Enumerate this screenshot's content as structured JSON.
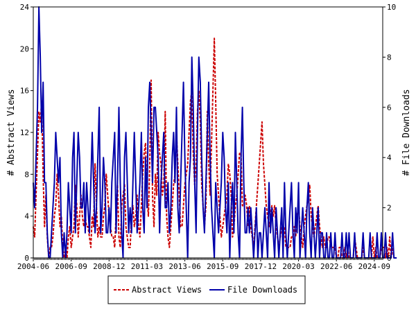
{
  "chart_data": {
    "type": "line",
    "y_left": {
      "label": "# Abstract Views",
      "ticks": [
        0,
        4,
        8,
        12,
        16,
        20,
        24
      ],
      "lim": [
        0,
        24
      ]
    },
    "y_right": {
      "label": "# File Downloads",
      "ticks": [
        0,
        2,
        4,
        6,
        8,
        10
      ],
      "lim": [
        0,
        10
      ]
    },
    "x": {
      "tick_labels": [
        "2004-06",
        "2006-09",
        "2008-12",
        "2011-03",
        "2013-06",
        "2015-09",
        "2017-12",
        "2020-03",
        "2022-06",
        "2024-09"
      ],
      "tick_months": [
        0,
        27,
        54,
        81,
        108,
        135,
        162,
        189,
        216,
        243
      ],
      "lim": [
        0,
        249
      ]
    },
    "grid": false,
    "legend_position": "bottom",
    "series": [
      {
        "name": "Abstract Views",
        "axis": "left",
        "color": "#cc0000",
        "dash": true,
        "values": [
          3,
          2,
          6,
          10,
          14,
          13,
          15,
          8,
          3,
          6,
          2,
          0,
          1,
          1,
          2,
          4,
          5,
          8,
          6,
          3,
          4,
          1,
          0,
          1,
          0,
          2,
          3,
          1,
          2,
          3,
          7,
          5,
          2,
          4,
          6,
          4,
          3,
          4,
          3,
          3,
          2,
          1,
          4,
          3,
          9,
          5,
          2,
          3,
          2,
          2,
          4,
          5,
          8,
          6,
          4,
          3,
          2,
          2,
          1,
          4,
          7,
          2,
          1,
          5,
          6,
          7,
          3,
          2,
          1,
          1,
          4,
          5,
          3,
          4,
          6,
          3,
          2,
          5,
          8,
          10,
          11,
          6,
          4,
          9,
          17,
          6,
          3,
          8,
          6,
          12,
          10,
          9,
          6,
          7,
          14,
          4,
          2,
          1,
          3,
          5,
          7,
          8,
          12,
          9,
          6,
          3,
          3,
          5,
          7,
          8,
          9,
          12,
          15,
          16,
          10,
          7,
          9,
          14,
          16,
          13,
          7,
          5,
          3,
          5,
          14,
          9,
          6,
          11,
          16,
          21,
          15,
          8,
          6,
          4,
          2,
          3,
          4,
          5,
          6,
          9,
          8,
          6,
          2,
          3,
          5,
          6,
          8,
          10,
          10,
          5,
          5,
          6,
          5,
          3,
          5,
          3,
          2,
          1,
          3,
          5,
          7,
          9,
          11,
          13,
          9,
          7,
          5,
          4,
          3,
          4,
          5,
          4,
          5,
          3,
          2,
          1,
          2,
          3,
          2,
          3,
          1,
          1,
          1,
          1,
          2,
          2,
          3,
          2,
          4,
          5,
          3,
          2,
          1,
          3,
          4,
          5,
          6,
          7,
          4,
          3,
          2,
          3,
          4,
          5,
          3,
          2,
          1,
          2,
          1,
          1,
          2,
          2,
          1,
          1,
          1,
          1,
          0,
          0,
          1,
          1,
          0,
          0,
          1,
          0,
          1,
          0,
          0,
          0,
          0,
          2,
          1,
          0,
          0,
          0,
          0,
          1,
          0,
          0,
          0,
          0,
          0,
          0,
          2,
          0,
          1,
          0,
          0,
          0,
          1,
          1,
          1,
          0,
          1,
          0,
          2,
          0,
          1,
          0,
          0
        ]
      },
      {
        "name": "File Downloads",
        "axis": "right",
        "color": "#0000aa",
        "dash": false,
        "values": [
          3,
          2,
          4,
          6,
          10,
          8,
          5,
          7,
          3,
          3,
          1,
          0,
          0,
          1,
          2,
          3,
          5,
          4,
          3,
          4,
          1,
          0,
          1,
          0,
          1,
          3,
          2,
          1,
          4,
          5,
          1,
          3,
          5,
          4,
          2,
          2,
          3,
          1,
          3,
          2,
          1,
          3,
          5,
          3,
          1,
          2,
          4,
          6,
          1,
          2,
          4,
          3,
          1,
          1,
          2,
          1,
          3,
          4,
          5,
          1,
          3,
          6,
          3,
          1,
          0,
          4,
          5,
          3,
          1,
          2,
          1,
          3,
          5,
          3,
          1,
          2,
          3,
          5,
          2,
          1,
          4,
          2,
          6,
          7,
          5,
          3,
          6,
          6,
          5,
          4,
          1,
          3,
          4,
          5,
          2,
          2,
          3,
          1,
          2,
          4,
          5,
          3,
          6,
          2,
          1,
          3,
          5,
          7,
          4,
          2,
          0,
          3,
          4,
          8,
          6,
          3,
          1,
          5,
          8,
          7,
          4,
          2,
          1,
          3,
          5,
          7,
          4,
          2,
          1,
          0,
          3,
          2,
          1,
          2,
          3,
          5,
          4,
          2,
          1,
          3,
          0,
          2,
          3,
          1,
          5,
          3,
          1,
          0,
          4,
          6,
          3,
          1,
          1,
          2,
          1,
          2,
          1,
          0,
          1,
          2,
          0,
          1,
          1,
          0,
          1,
          2,
          1,
          0,
          3,
          1,
          2,
          1,
          0,
          2,
          1,
          0,
          1,
          2,
          0,
          3,
          1,
          0,
          1,
          2,
          3,
          1,
          0,
          2,
          1,
          3,
          0,
          1,
          2,
          1,
          0,
          2,
          3,
          1,
          0,
          2,
          1,
          0,
          1,
          2,
          0,
          1,
          1,
          0,
          0,
          1,
          0,
          0,
          1,
          0,
          0,
          1,
          0,
          0,
          0,
          0,
          1,
          0,
          0,
          1,
          0,
          1,
          0,
          0,
          0,
          1,
          0,
          0,
          0,
          0,
          0,
          1,
          0,
          0,
          0,
          0,
          1,
          0,
          0,
          0,
          0,
          1,
          0,
          0,
          1,
          0,
          0,
          1,
          0,
          0,
          0,
          0,
          1,
          0,
          0,
          0
        ]
      }
    ]
  }
}
